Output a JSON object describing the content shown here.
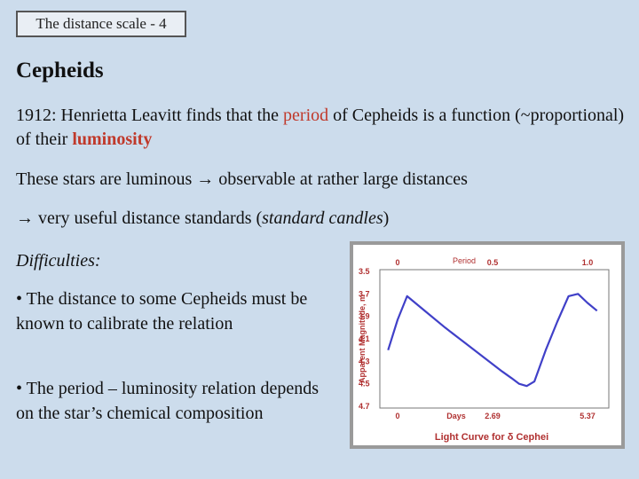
{
  "header": {
    "slide_label": "The distance scale - 4"
  },
  "title": "Cepheids",
  "paragraphs": {
    "p1_a": "1912: Henrietta Leavitt finds that the ",
    "p1_period": "period",
    "p1_b": " of Cepheids is a function (~proportional) of their ",
    "p1_luminosity": "luminosity",
    "p2": "These stars are luminous → observable at rather large distances",
    "p3_a": "→ very useful distance standards (",
    "p3_italic": "standard candles",
    "p3_b": ")",
    "p4": "Difficulties:",
    "p5": "• The distance to some Cepheids must be known to calibrate the relation",
    "p6": "• The period – luminosity relation depends on the star’s chemical composition"
  },
  "colors": {
    "highlight": "#c0392b",
    "curve": "#4040c8",
    "chart_label": "#b03030"
  },
  "chart_data": {
    "type": "line",
    "title": "Light Curve for δ Cephei",
    "ylabel": "Apparent Magnitude, m",
    "top_axis_label": "Period",
    "bottom_axis_label": "Days",
    "x_range": [
      0,
      1.05
    ],
    "y_range": [
      3.5,
      4.7
    ],
    "y_inverted": true,
    "y_ticks": [
      "3.5",
      "3.7",
      "3.9",
      "4.1",
      "4.3",
      "4.5",
      "4.7"
    ],
    "top_ticks": [
      {
        "x": 0,
        "label": "0"
      },
      {
        "x": 0.5,
        "label": "0.5"
      },
      {
        "x": 1.0,
        "label": "1.0"
      }
    ],
    "bottom_ticks": [
      {
        "x": 0,
        "label": "0"
      },
      {
        "x": 0.5,
        "label": "2.69"
      },
      {
        "x": 1.0,
        "label": "5.37"
      }
    ],
    "series": [
      {
        "x": [
          -0.05,
          0.0,
          0.05,
          0.15,
          0.25,
          0.35,
          0.45,
          0.55,
          0.6,
          0.64,
          0.68,
          0.72,
          0.78,
          0.84,
          0.9,
          0.95,
          1.0,
          1.05
        ],
        "y": [
          4.2,
          3.93,
          3.72,
          3.86,
          4.0,
          4.13,
          4.26,
          4.39,
          4.45,
          4.5,
          4.52,
          4.48,
          4.2,
          3.95,
          3.72,
          3.7,
          3.78,
          3.85
        ]
      }
    ]
  }
}
